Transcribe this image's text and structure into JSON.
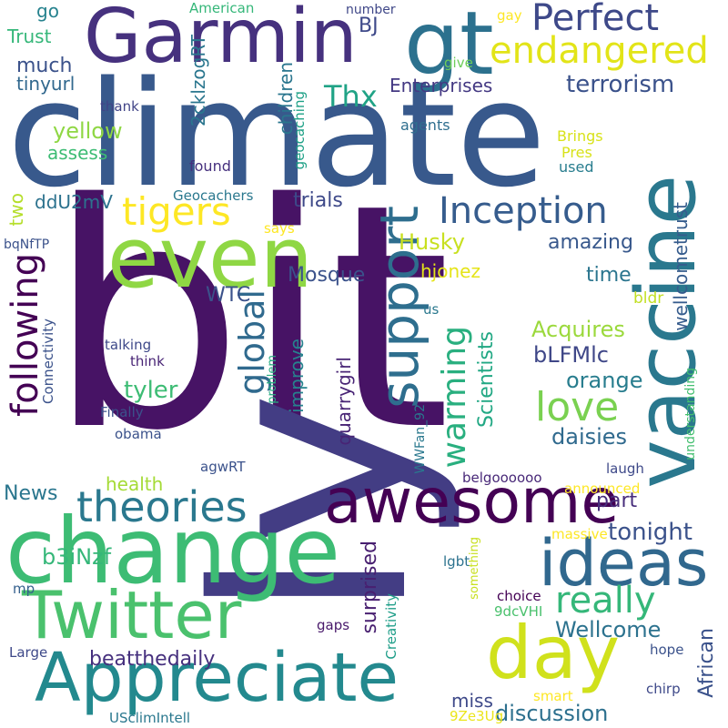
{
  "words": [
    {
      "text": "bit",
      "color": "#471365"
    },
    {
      "text": "ly",
      "color": "#433d84"
    },
    {
      "text": "climate",
      "color": "#38598c"
    },
    {
      "text": "Garmin",
      "color": "#46317e"
    },
    {
      "text": "change",
      "color": "#3dbc74"
    },
    {
      "text": "Appreciate",
      "color": "#23898e"
    },
    {
      "text": "even",
      "color": "#8fd744"
    },
    {
      "text": "gt",
      "color": "#2c718e"
    },
    {
      "text": "vaccine",
      "color": "#2a788e"
    },
    {
      "text": "awesome",
      "color": "#440154"
    },
    {
      "text": "Twitter",
      "color": "#4ac16d"
    },
    {
      "text": "day",
      "color": "#d0e11c"
    },
    {
      "text": "support",
      "color": "#2e6e8e"
    },
    {
      "text": "ideas",
      "color": "#31688e"
    },
    {
      "text": "theories",
      "color": "#2a788e"
    },
    {
      "text": "endangered",
      "color": "#e2e418"
    },
    {
      "text": "Perfect",
      "color": "#3e4989"
    },
    {
      "text": "Inception",
      "color": "#365c8d"
    },
    {
      "text": "really",
      "color": "#35b779"
    },
    {
      "text": "tigers",
      "color": "#fde725"
    },
    {
      "text": "love",
      "color": "#7ad151"
    },
    {
      "text": "following",
      "color": "#440154"
    },
    {
      "text": "global",
      "color": "#306a8e"
    },
    {
      "text": "warming",
      "color": "#29af7f"
    },
    {
      "text": "Thx",
      "color": "#20a386"
    },
    {
      "text": "Scientists",
      "color": "#22a884"
    },
    {
      "text": "Wellcome",
      "color": "#2c728e"
    },
    {
      "text": "discussion",
      "color": "#2d708e"
    },
    {
      "text": "tonight",
      "color": "#3b528b"
    },
    {
      "text": "African",
      "color": "#3b528b"
    },
    {
      "text": "beatthedaily",
      "color": "#46307e"
    },
    {
      "text": "Acquires",
      "color": "#9bd93c"
    },
    {
      "text": "Husky",
      "color": "#c8e020"
    },
    {
      "text": "orange",
      "color": "#287d8e"
    },
    {
      "text": "daisies",
      "color": "#306a8e"
    },
    {
      "text": "tyler",
      "color": "#3dbc74"
    },
    {
      "text": "surprised",
      "color": "#481f70"
    },
    {
      "text": "terrorism",
      "color": "#3b528b"
    },
    {
      "text": "amazing",
      "color": "#38588c"
    },
    {
      "text": "time",
      "color": "#2b758e"
    },
    {
      "text": "trials",
      "color": "#3e4989"
    },
    {
      "text": "Mosque",
      "color": "#3b528b"
    },
    {
      "text": "WTC",
      "color": "#3b528b"
    },
    {
      "text": "bLFMlc",
      "color": "#3f4788"
    },
    {
      "text": "part",
      "color": "#472d7b"
    },
    {
      "text": "health",
      "color": "#a5db36"
    },
    {
      "text": "News",
      "color": "#2a768e"
    },
    {
      "text": "b3iNzf",
      "color": "#35b779"
    },
    {
      "text": "miss",
      "color": "#3e4989"
    },
    {
      "text": "hjonez",
      "color": "#e5e419"
    },
    {
      "text": "improve",
      "color": "#26828e"
    },
    {
      "text": "quarrygirl",
      "color": "#482475"
    },
    {
      "text": "children",
      "color": "#2a768e"
    },
    {
      "text": "yellow",
      "color": "#8fd744"
    },
    {
      "text": "much",
      "color": "#3b528b"
    },
    {
      "text": "ddU2mV",
      "color": "#2c728e"
    },
    {
      "text": "assess",
      "color": "#3dbc74"
    },
    {
      "text": "two",
      "color": "#b5de2b"
    },
    {
      "text": "Enterprises",
      "color": "#443983"
    },
    {
      "text": "BJ",
      "color": "#3e4989"
    },
    {
      "text": "tinyurl",
      "color": "#31688e"
    },
    {
      "text": "2cklzogRT",
      "color": "#2a768e"
    },
    {
      "text": "Trust",
      "color": "#35b779"
    },
    {
      "text": "go",
      "color": "#26828e"
    },
    {
      "text": "wellcometrust",
      "color": "#365c8d"
    },
    {
      "text": "bldr",
      "color": "#c2df23"
    },
    {
      "text": "Geocachers",
      "color": "#2a788e"
    },
    {
      "text": "agents",
      "color": "#2e6e8e"
    },
    {
      "text": "found",
      "color": "#46307e"
    },
    {
      "text": "number",
      "color": "#3f4788"
    },
    {
      "text": "American",
      "color": "#35b779"
    },
    {
      "text": "give",
      "color": "#6ece58"
    },
    {
      "text": "gay",
      "color": "#fde725"
    },
    {
      "text": "Brings",
      "color": "#d8e219"
    },
    {
      "text": "Pres",
      "color": "#d8e219"
    },
    {
      "text": "used",
      "color": "#287d8e"
    },
    {
      "text": "thank",
      "color": "#414487"
    },
    {
      "text": "geocaching",
      "color": "#1fa187"
    },
    {
      "text": "bqNfTP",
      "color": "#3b528b"
    },
    {
      "text": "says",
      "color": "#fde725"
    },
    {
      "text": "us",
      "color": "#2a788e"
    },
    {
      "text": "talking",
      "color": "#3e4989"
    },
    {
      "text": "think",
      "color": "#482475"
    },
    {
      "text": "Finally",
      "color": "#3b528b"
    },
    {
      "text": "obama",
      "color": "#3b528b"
    },
    {
      "text": "Connectivity",
      "color": "#3b528b"
    },
    {
      "text": "problem",
      "color": "#27ad81"
    },
    {
      "text": "WWFan_92",
      "color": "#2a788e"
    },
    {
      "text": "agwRT",
      "color": "#3b528b"
    },
    {
      "text": "belgoooooo",
      "color": "#482878"
    },
    {
      "text": "laugh",
      "color": "#3e4989"
    },
    {
      "text": "understanding",
      "color": "#44bf70"
    },
    {
      "text": "announced",
      "color": "#fde725"
    },
    {
      "text": "massive",
      "color": "#fde725"
    },
    {
      "text": "lgbt",
      "color": "#2c728e"
    },
    {
      "text": "something",
      "color": "#c8e020"
    },
    {
      "text": "mp",
      "color": "#35608d"
    },
    {
      "text": "Creativity",
      "color": "#1f9e89"
    },
    {
      "text": "choice",
      "color": "#440154"
    },
    {
      "text": "9dcVHI",
      "color": "#4ac16d"
    },
    {
      "text": "gaps",
      "color": "#48186a"
    },
    {
      "text": "hope",
      "color": "#3b528b"
    },
    {
      "text": "Large",
      "color": "#3e4989"
    },
    {
      "text": "chirp",
      "color": "#3e4989"
    },
    {
      "text": "smart",
      "color": "#fde725"
    },
    {
      "text": "9Ze3Ug",
      "color": "#ebe51b"
    },
    {
      "text": "USclimIntell",
      "color": "#2a788e"
    }
  ]
}
